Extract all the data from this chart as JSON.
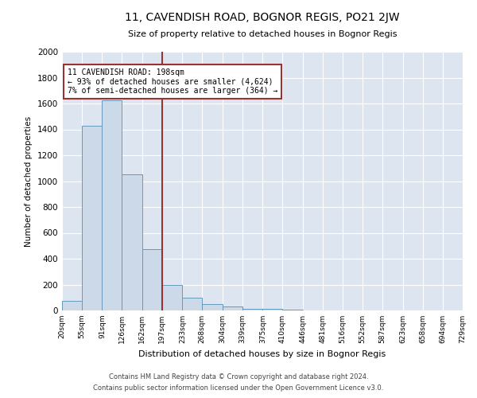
{
  "title": "11, CAVENDISH ROAD, BOGNOR REGIS, PO21 2JW",
  "subtitle": "Size of property relative to detached houses in Bognor Regis",
  "xlabel": "Distribution of detached houses by size in Bognor Regis",
  "ylabel": "Number of detached properties",
  "footnote1": "Contains HM Land Registry data © Crown copyright and database right 2024.",
  "footnote2": "Contains public sector information licensed under the Open Government Licence v3.0.",
  "bins": [
    20,
    55,
    91,
    126,
    162,
    197,
    233,
    268,
    304,
    339,
    375,
    410,
    446,
    481,
    516,
    552,
    587,
    623,
    658,
    694,
    729
  ],
  "bin_labels": [
    "20sqm",
    "55sqm",
    "91sqm",
    "126sqm",
    "162sqm",
    "197sqm",
    "233sqm",
    "268sqm",
    "304sqm",
    "339sqm",
    "375sqm",
    "410sqm",
    "446sqm",
    "481sqm",
    "516sqm",
    "552sqm",
    "587sqm",
    "623sqm",
    "658sqm",
    "694sqm",
    "729sqm"
  ],
  "counts": [
    75,
    1425,
    1625,
    1050,
    475,
    200,
    100,
    50,
    30,
    15,
    10,
    5,
    3,
    2,
    1,
    1,
    0,
    0,
    0,
    0
  ],
  "bar_color": "#ccd9e8",
  "bar_edge_color": "#6699bb",
  "vline_x": 197,
  "vline_color": "#993333",
  "annotation_title": "11 CAVENDISH ROAD: 198sqm",
  "annotation_line1": "← 93% of detached houses are smaller (4,624)",
  "annotation_line2": "7% of semi-detached houses are larger (364) →",
  "annotation_box_color": "#993333",
  "ylim": [
    0,
    2000
  ],
  "yticks": [
    0,
    200,
    400,
    600,
    800,
    1000,
    1200,
    1400,
    1600,
    1800,
    2000
  ],
  "bg_color": "#dde6f0",
  "grid_color": "#ffffff"
}
